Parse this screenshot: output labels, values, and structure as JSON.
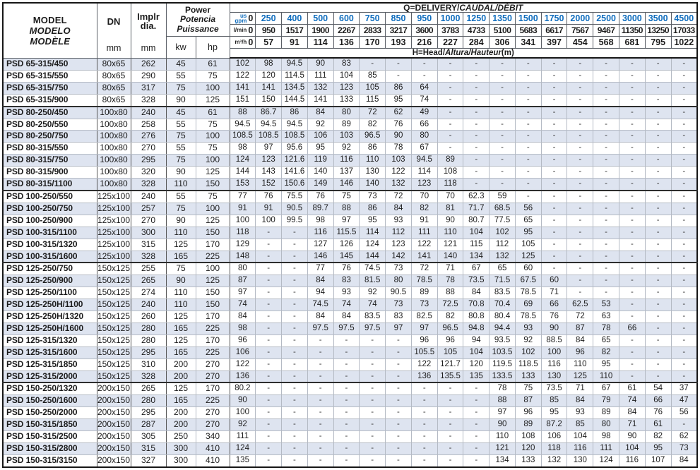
{
  "colors": {
    "accent_blue": "#0e6cbd",
    "row_shade": "#dee4f0",
    "border_dark": "#161616"
  },
  "table": {
    "header": {
      "model_lines": [
        "MODEL",
        "MODELO",
        "MODÈLE"
      ],
      "dn_label": "DN",
      "implr_label": "Implr\ndia.",
      "unit_mm": "mm",
      "power_lines": [
        "Power",
        "Potencia",
        "Puissance"
      ],
      "unit_kw": "kw",
      "unit_hp": "hp",
      "q_title_main": "Q=DELIVERY/",
      "q_title_italic": "CAUDAL/DÉBIT",
      "h_title_main": "H=Head/",
      "h_title_italic": "Altura/Hauteur",
      "h_title_suffix": "(m)",
      "unit_gpm": "us\ngpm",
      "unit_lmin": "l/min",
      "unit_m3h": "m³/h",
      "gpm": [
        "0",
        "250",
        "400",
        "500",
        "600",
        "750",
        "850",
        "950",
        "1000",
        "1250",
        "1350",
        "1500",
        "1750",
        "2000",
        "2500",
        "3000",
        "3500",
        "4500"
      ],
      "lmin": [
        "0",
        "950",
        "1517",
        "1900",
        "2267",
        "2833",
        "3217",
        "3600",
        "3783",
        "4733",
        "5100",
        "5683",
        "6617",
        "7567",
        "9467",
        "11350",
        "13250",
        "17033"
      ],
      "m3h": [
        "0",
        "57",
        "91",
        "114",
        "136",
        "170",
        "193",
        "216",
        "227",
        "284",
        "306",
        "341",
        "397",
        "454",
        "568",
        "681",
        "795",
        "1022"
      ]
    },
    "rows": [
      {
        "model": "PSD 65-315/450",
        "dn": "80x65",
        "implr": "262",
        "kw": "45",
        "hp": "61",
        "head": [
          "102",
          "98",
          "94.5",
          "90",
          "83",
          "-",
          "-",
          "-",
          "-",
          "-",
          "-",
          "-",
          "-",
          "-",
          "-",
          "-",
          "-",
          "-"
        ]
      },
      {
        "model": "PSD 65-315/550",
        "dn": "80x65",
        "implr": "290",
        "kw": "55",
        "hp": "75",
        "head": [
          "122",
          "120",
          "114.5",
          "111",
          "104",
          "85",
          "-",
          "-",
          "-",
          "-",
          "-",
          "-",
          "-",
          "-",
          "-",
          "-",
          "-",
          "-"
        ]
      },
      {
        "model": "PSD 65-315/750",
        "dn": "80x65",
        "implr": "317",
        "kw": "75",
        "hp": "100",
        "head": [
          "141",
          "141",
          "134.5",
          "132",
          "123",
          "105",
          "86",
          "64",
          "-",
          "-",
          "-",
          "-",
          "-",
          "-",
          "-",
          "-",
          "-",
          "-"
        ]
      },
      {
        "model": "PSD 65-315/900",
        "dn": "80x65",
        "implr": "328",
        "kw": "90",
        "hp": "125",
        "head": [
          "151",
          "150",
          "144.5",
          "141",
          "133",
          "115",
          "95",
          "74",
          "-",
          "-",
          "-",
          "-",
          "-",
          "-",
          "-",
          "-",
          "-",
          "-"
        ]
      },
      {
        "model": "PSD 80-250/450",
        "dn": "100x80",
        "implr": "240",
        "kw": "45",
        "hp": "61",
        "head": [
          "88",
          "86.7",
          "86",
          "84",
          "80",
          "72",
          "62",
          "49",
          "-",
          "-",
          "-",
          "-",
          "-",
          "-",
          "-",
          "-",
          "-",
          "-"
        ]
      },
      {
        "model": "PSD 80-250/550",
        "dn": "100x80",
        "implr": "258",
        "kw": "55",
        "hp": "75",
        "head": [
          "94.5",
          "94.5",
          "94.5",
          "92",
          "89",
          "82",
          "76",
          "66",
          "-",
          "-",
          "-",
          "-",
          "-",
          "-",
          "-",
          "-",
          "-",
          "-"
        ]
      },
      {
        "model": "PSD 80-250/750",
        "dn": "100x80",
        "implr": "276",
        "kw": "75",
        "hp": "100",
        "head": [
          "108.5",
          "108.5",
          "108.5",
          "106",
          "103",
          "96.5",
          "90",
          "80",
          "-",
          "-",
          "-",
          "-",
          "-",
          "-",
          "-",
          "-",
          "-",
          "-"
        ]
      },
      {
        "model": "PSD 80-315/550",
        "dn": "100x80",
        "implr": "270",
        "kw": "55",
        "hp": "75",
        "head": [
          "98",
          "97",
          "95.6",
          "95",
          "92",
          "86",
          "78",
          "67",
          "-",
          "-",
          "-",
          "-",
          "-",
          "-",
          "-",
          "-",
          "-",
          "-"
        ]
      },
      {
        "model": "PSD 80-315/750",
        "dn": "100x80",
        "implr": "295",
        "kw": "75",
        "hp": "100",
        "head": [
          "124",
          "123",
          "121.6",
          "119",
          "116",
          "110",
          "103",
          "94.5",
          "89",
          "-",
          "-",
          "-",
          "-",
          "-",
          "-",
          "-",
          "-",
          "-"
        ]
      },
      {
        "model": "PSD 80-315/900",
        "dn": "100x80",
        "implr": "320",
        "kw": "90",
        "hp": "125",
        "head": [
          "144",
          "143",
          "141.6",
          "140",
          "137",
          "130",
          "122",
          "114",
          "108",
          "-",
          "-",
          "-",
          "-",
          "-",
          "-",
          "-",
          "-",
          "-"
        ]
      },
      {
        "model": "PSD 80-315/1100",
        "dn": "100x80",
        "implr": "328",
        "kw": "110",
        "hp": "150",
        "head": [
          "153",
          "152",
          "150.6",
          "149",
          "146",
          "140",
          "132",
          "123",
          "118",
          "-",
          "-",
          "-",
          "-",
          "-",
          "-",
          "-",
          "-",
          "-"
        ]
      },
      {
        "model": "PSD 100-250/550",
        "dn": "125x100",
        "implr": "240",
        "kw": "55",
        "hp": "75",
        "head": [
          "77",
          "76",
          "75.5",
          "76",
          "75",
          "73",
          "72",
          "70",
          "70",
          "62.3",
          "59",
          "-",
          "-",
          "-",
          "-",
          "-",
          "-",
          "-"
        ]
      },
      {
        "model": "PSD 100-250/750",
        "dn": "125x100",
        "implr": "257",
        "kw": "75",
        "hp": "100",
        "head": [
          "91",
          "91",
          "90.5",
          "89.7",
          "88",
          "86",
          "84",
          "82",
          "81",
          "71.7",
          "68.5",
          "56",
          "-",
          "-",
          "-",
          "-",
          "-",
          "-"
        ]
      },
      {
        "model": "PSD 100-250/900",
        "dn": "125x100",
        "implr": "270",
        "kw": "90",
        "hp": "125",
        "head": [
          "100",
          "100",
          "99.5",
          "98",
          "97",
          "95",
          "93",
          "91",
          "90",
          "80.7",
          "77.5",
          "65",
          "-",
          "-",
          "-",
          "-",
          "-",
          "-"
        ]
      },
      {
        "model": "PSD 100-315/1100",
        "dn": "125x100",
        "implr": "300",
        "kw": "110",
        "hp": "150",
        "head": [
          "118",
          "-",
          "-",
          "116",
          "115.5",
          "114",
          "112",
          "111",
          "110",
          "104",
          "102",
          "95",
          "-",
          "-",
          "-",
          "-",
          "-",
          "-"
        ]
      },
      {
        "model": "PSD 100-315/1320",
        "dn": "125x100",
        "implr": "315",
        "kw": "125",
        "hp": "170",
        "head": [
          "129",
          "-",
          "-",
          "127",
          "126",
          "124",
          "123",
          "122",
          "121",
          "115",
          "112",
          "105",
          "-",
          "-",
          "-",
          "-",
          "-",
          "-"
        ]
      },
      {
        "model": "PSD 100-315/1600",
        "dn": "125x100",
        "implr": "328",
        "kw": "165",
        "hp": "225",
        "head": [
          "148",
          "-",
          "-",
          "146",
          "145",
          "144",
          "142",
          "141",
          "140",
          "134",
          "132",
          "125",
          "-",
          "-",
          "-",
          "-",
          "-",
          "-"
        ]
      },
      {
        "model": "PSD 125-250/750",
        "dn": "150x125",
        "implr": "255",
        "kw": "75",
        "hp": "100",
        "head": [
          "80",
          "-",
          "-",
          "77",
          "76",
          "74.5",
          "73",
          "72",
          "71",
          "67",
          "65",
          "60",
          "-",
          "-",
          "-",
          "-",
          "-",
          "-"
        ]
      },
      {
        "model": "PSD 125-250/900",
        "dn": "150x125",
        "implr": "265",
        "kw": "90",
        "hp": "125",
        "head": [
          "87",
          "-",
          "-",
          "84",
          "83",
          "81.5",
          "80",
          "78.5",
          "78",
          "73.5",
          "71.5",
          "67.5",
          "60",
          "-",
          "-",
          "-",
          "-",
          "-"
        ]
      },
      {
        "model": "PSD 125-250/1100",
        "dn": "150x125",
        "implr": "274",
        "kw": "110",
        "hp": "150",
        "head": [
          "97",
          "-",
          "-",
          "94",
          "93",
          "92",
          "90.5",
          "89",
          "88",
          "84",
          "83.5",
          "78.5",
          "71",
          "-",
          "-",
          "-",
          "-",
          "-"
        ]
      },
      {
        "model": "PSD 125-250H/1100",
        "dn": "150x125",
        "implr": "240",
        "kw": "110",
        "hp": "150",
        "head": [
          "74",
          "-",
          "-",
          "74.5",
          "74",
          "74",
          "73",
          "73",
          "72.5",
          "70.8",
          "70.4",
          "69",
          "66",
          "62.5",
          "53",
          "-",
          "-",
          "-"
        ]
      },
      {
        "model": "PSD 125-250H/1320",
        "dn": "150x125",
        "implr": "260",
        "kw": "125",
        "hp": "170",
        "head": [
          "84",
          "-",
          "-",
          "84",
          "84",
          "83.5",
          "83",
          "82.5",
          "82",
          "80.8",
          "80.4",
          "78.5",
          "76",
          "72",
          "63",
          "-",
          "-",
          "-"
        ]
      },
      {
        "model": "PSD 125-250H/1600",
        "dn": "150x125",
        "implr": "280",
        "kw": "165",
        "hp": "225",
        "head": [
          "98",
          "-",
          "-",
          "97.5",
          "97.5",
          "97.5",
          "97",
          "97",
          "96.5",
          "94.8",
          "94.4",
          "93",
          "90",
          "87",
          "78",
          "66",
          "-",
          "-"
        ]
      },
      {
        "model": "PSD 125-315/1320",
        "dn": "150x125",
        "implr": "280",
        "kw": "125",
        "hp": "170",
        "head": [
          "96",
          "-",
          "-",
          "-",
          "-",
          "-",
          "-",
          "96",
          "96",
          "94",
          "93.5",
          "92",
          "88.5",
          "84",
          "65",
          "-",
          "-",
          "-"
        ]
      },
      {
        "model": "PSD 125-315/1600",
        "dn": "150x125",
        "implr": "295",
        "kw": "165",
        "hp": "225",
        "head": [
          "106",
          "-",
          "-",
          "-",
          "-",
          "-",
          "-",
          "105.5",
          "105",
          "104",
          "103.5",
          "102",
          "100",
          "96",
          "82",
          "-",
          "-",
          "-"
        ]
      },
      {
        "model": "PSD 125-315/1850",
        "dn": "150x125",
        "implr": "310",
        "kw": "200",
        "hp": "270",
        "head": [
          "122",
          "-",
          "-",
          "-",
          "-",
          "-",
          "-",
          "122",
          "121.7",
          "120",
          "119.5",
          "118.5",
          "116",
          "110",
          "95",
          "-",
          "-",
          "-"
        ]
      },
      {
        "model": "PSD 125-315/2000",
        "dn": "150x125",
        "implr": "328",
        "kw": "200",
        "hp": "270",
        "head": [
          "136",
          "-",
          "-",
          "-",
          "-",
          "-",
          "-",
          "136",
          "135.5",
          "135",
          "133.5",
          "133",
          "130",
          "125",
          "110",
          "-",
          "-",
          "-"
        ]
      },
      {
        "model": "PSD 150-250/1320",
        "dn": "200x150",
        "implr": "265",
        "kw": "125",
        "hp": "170",
        "head": [
          "80.2",
          "-",
          "-",
          "-",
          "-",
          "-",
          "-",
          "-",
          "-",
          "-",
          "78",
          "75",
          "73.5",
          "71",
          "67",
          "61",
          "54",
          "37"
        ]
      },
      {
        "model": "PSD 150-250/1600",
        "dn": "200x150",
        "implr": "280",
        "kw": "165",
        "hp": "225",
        "head": [
          "90",
          "-",
          "-",
          "-",
          "-",
          "-",
          "-",
          "-",
          "-",
          "-",
          "88",
          "87",
          "85",
          "84",
          "79",
          "74",
          "66",
          "47"
        ]
      },
      {
        "model": "PSD 150-250/2000",
        "dn": "200x150",
        "implr": "295",
        "kw": "200",
        "hp": "270",
        "head": [
          "100",
          "-",
          "-",
          "-",
          "-",
          "-",
          "-",
          "-",
          "-",
          "-",
          "97",
          "96",
          "95",
          "93",
          "89",
          "84",
          "76",
          "56"
        ]
      },
      {
        "model": "PSD 150-315/1850",
        "dn": "200x150",
        "implr": "287",
        "kw": "200",
        "hp": "270",
        "head": [
          "92",
          "-",
          "-",
          "-",
          "-",
          "-",
          "-",
          "-",
          "-",
          "-",
          "90",
          "89",
          "87.2",
          "85",
          "80",
          "71",
          "61",
          "-"
        ]
      },
      {
        "model": "PSD 150-315/2500",
        "dn": "200x150",
        "implr": "305",
        "kw": "250",
        "hp": "340",
        "head": [
          "111",
          "-",
          "-",
          "-",
          "-",
          "-",
          "-",
          "-",
          "-",
          "-",
          "110",
          "108",
          "106",
          "104",
          "98",
          "90",
          "82",
          "62"
        ]
      },
      {
        "model": "PSD 150-315/2800",
        "dn": "200x150",
        "implr": "315",
        "kw": "300",
        "hp": "410",
        "head": [
          "124",
          "-",
          "-",
          "-",
          "-",
          "-",
          "-",
          "-",
          "-",
          "-",
          "121",
          "120",
          "118",
          "116",
          "111",
          "104",
          "95",
          "73"
        ]
      },
      {
        "model": "PSD 150-315/3150",
        "dn": "200x150",
        "implr": "327",
        "kw": "300",
        "hp": "410",
        "head": [
          "135",
          "-",
          "-",
          "-",
          "-",
          "-",
          "-",
          "-",
          "-",
          "-",
          "134",
          "133",
          "132",
          "130",
          "124",
          "116",
          "107",
          "84"
        ]
      }
    ]
  }
}
